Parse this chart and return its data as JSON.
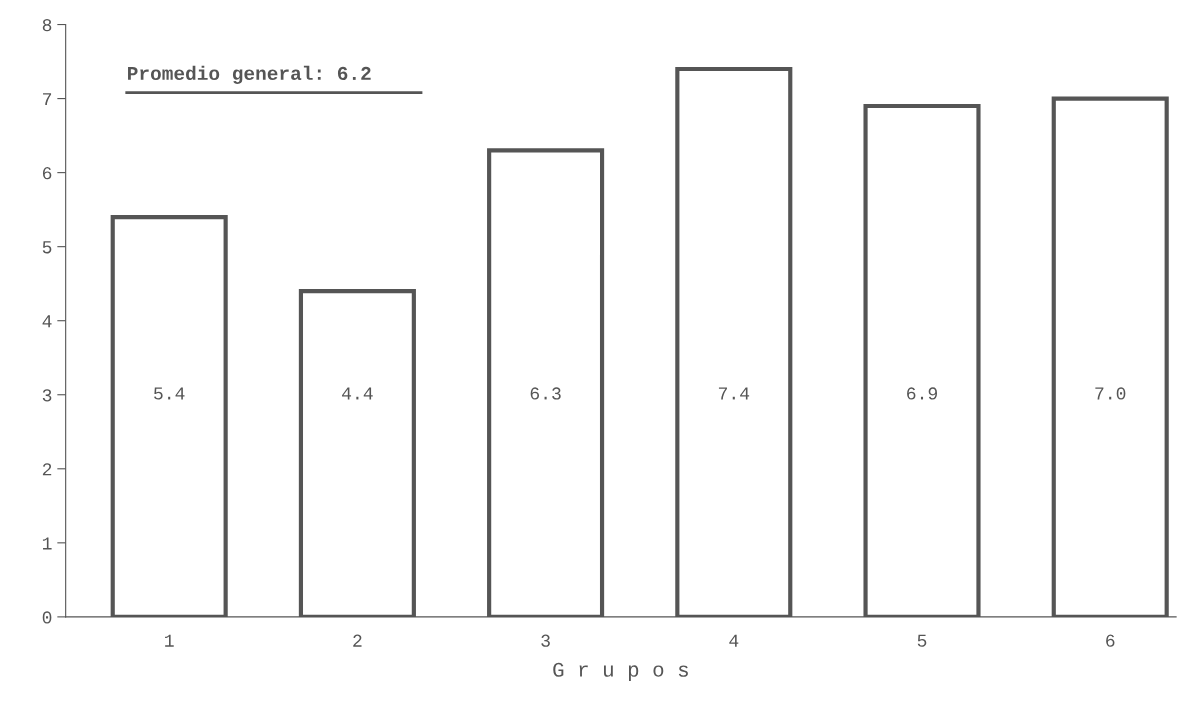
{
  "chart_data": {
    "type": "bar",
    "xlabel": "G r u p o s",
    "categories": [
      "1",
      "2",
      "3",
      "4",
      "5",
      "6"
    ],
    "values": [
      5.4,
      4.4,
      6.3,
      7.4,
      6.9,
      7.0
    ],
    "color": "#ffffff",
    "ylim": [
      0,
      8
    ],
    "yticks": [
      0,
      1,
      2,
      3,
      4,
      5,
      6,
      7,
      8
    ],
    "value_labels": [
      "5.4",
      "4.4",
      "6.3",
      "7.4",
      "6.9",
      "7.0"
    ],
    "grid": false,
    "legend": false,
    "annotations": [
      "Promedio general: 6.2"
    ]
  }
}
